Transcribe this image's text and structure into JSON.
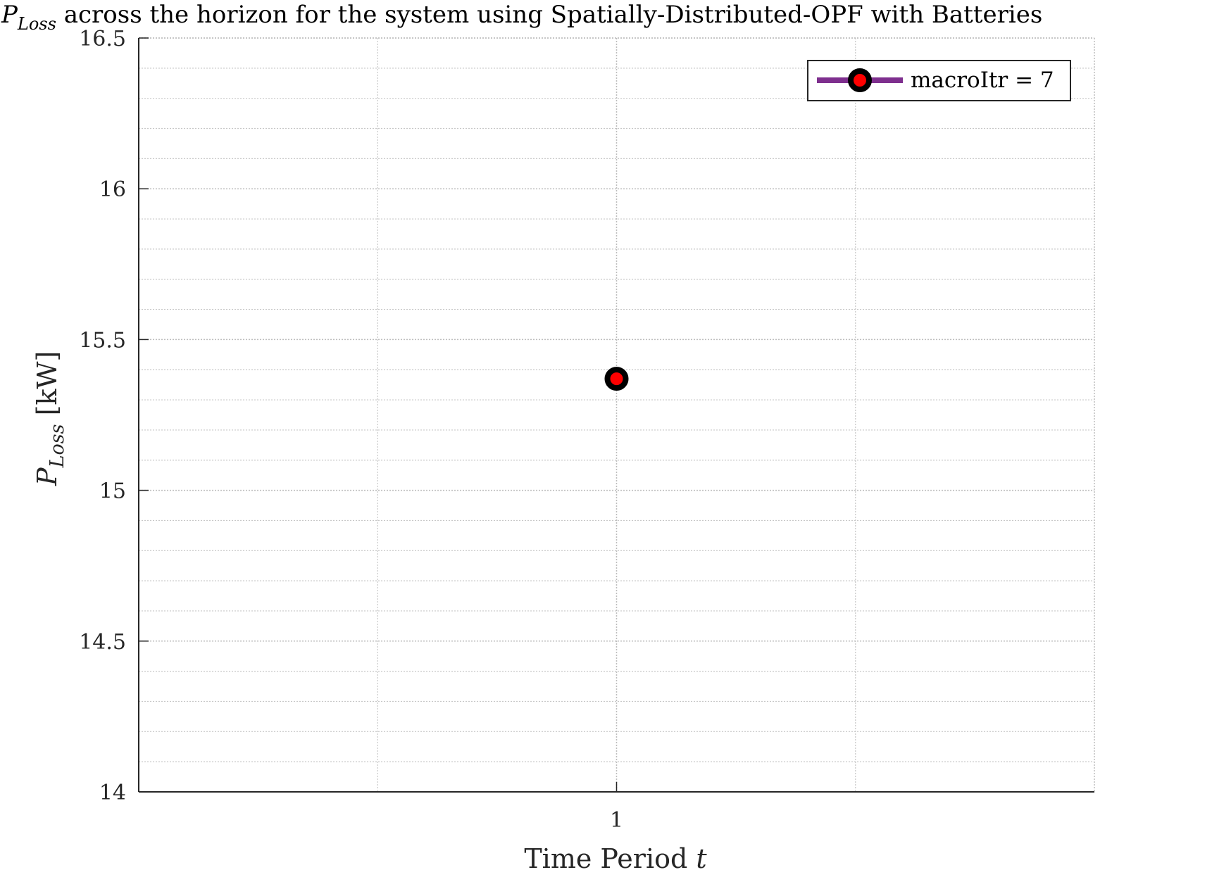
{
  "chart_data": {
    "type": "line",
    "title": {
      "symbol": "P",
      "subscript": "Loss",
      "text": " across the horizon for the system using Spatially-Distributed-OPF with Batteries"
    },
    "xlabel": {
      "text": "Time Period ",
      "italic": "t"
    },
    "ylabel": {
      "symbol": "P",
      "subscript": "Loss",
      "unit": " [kW]"
    },
    "x_ticks": [
      "1"
    ],
    "y_ticks": [
      "14",
      "14.5",
      "15",
      "15.5",
      "16",
      "16.5"
    ],
    "xlim": [
      0,
      2
    ],
    "ylim": [
      14,
      16.5
    ],
    "grid": true,
    "minor_grid": true,
    "legend_position": "top-right",
    "series": [
      {
        "name": "macroItr = 7",
        "x": [
          1
        ],
        "y": [
          15.37
        ],
        "line_color": "#7E2F8E",
        "marker_edge_color": "#000000",
        "marker_face_color": "#FF0000"
      }
    ]
  }
}
